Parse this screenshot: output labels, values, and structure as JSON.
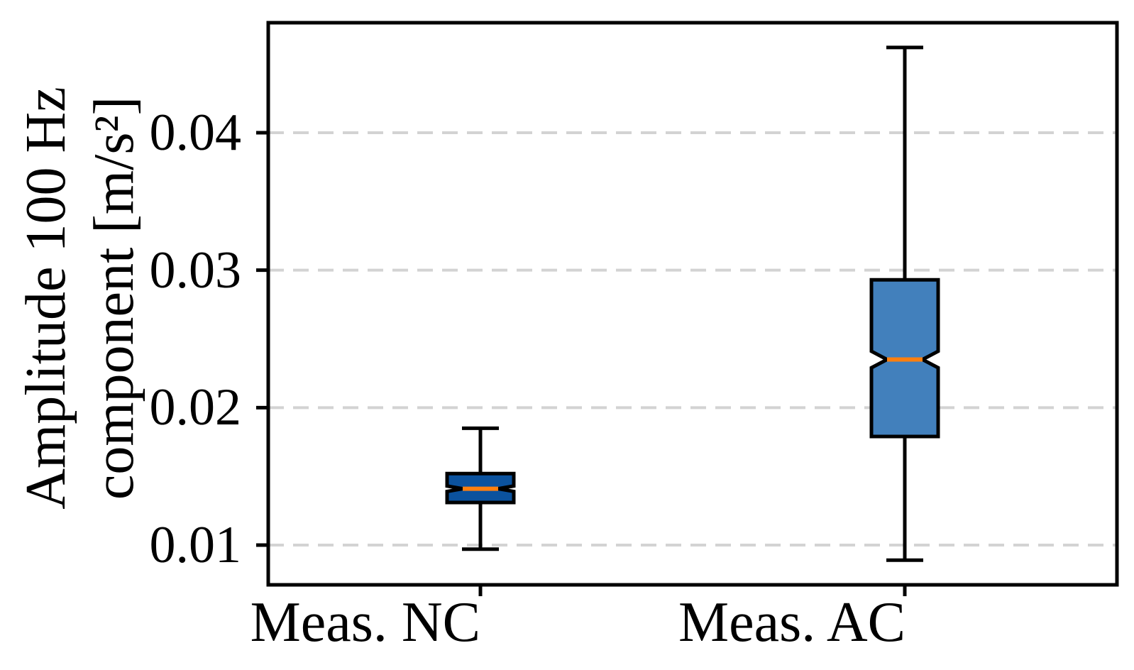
{
  "chart_data": {
    "type": "boxplot",
    "notched": true,
    "title": "",
    "xlabel": "",
    "ylabel": "Amplitude 100 Hz component [m/s²]",
    "ylabel_lines": [
      "Amplitude 100 Hz",
      "component [m/s²]"
    ],
    "categories": [
      "Meas. NC",
      "Meas. AC"
    ],
    "positions": [
      1,
      2
    ],
    "xlim": [
      0.5,
      2.5
    ],
    "ylim": [
      0.0071,
      0.048
    ],
    "yticks": [
      0.01,
      0.02,
      0.03,
      0.04
    ],
    "ytick_labels": [
      "0.01",
      "0.02",
      "0.03",
      "0.04"
    ],
    "grid": "horizontal dashed, below data",
    "legend": "none",
    "series": [
      {
        "name": "Meas. NC",
        "position": 1,
        "whisker_low": 0.0097,
        "q1": 0.0131,
        "median": 0.0141,
        "q3": 0.0152,
        "whisker_high": 0.0185,
        "notch_low": 0.0139,
        "notch_high": 0.0143,
        "box_color": "#0b529e"
      },
      {
        "name": "Meas. AC",
        "position": 2,
        "whisker_low": 0.0089,
        "q1": 0.0179,
        "median": 0.0235,
        "q3": 0.0293,
        "whisker_high": 0.0462,
        "notch_low": 0.0229,
        "notch_high": 0.0241,
        "box_color": "#4280bc"
      }
    ],
    "colors": {
      "median": "#ff7f0e",
      "box_edge": "#000000",
      "whisker": "#000000",
      "frame": "#000000",
      "grid": "#d3d3d3",
      "background": "#ffffff",
      "text": "#000000"
    }
  }
}
